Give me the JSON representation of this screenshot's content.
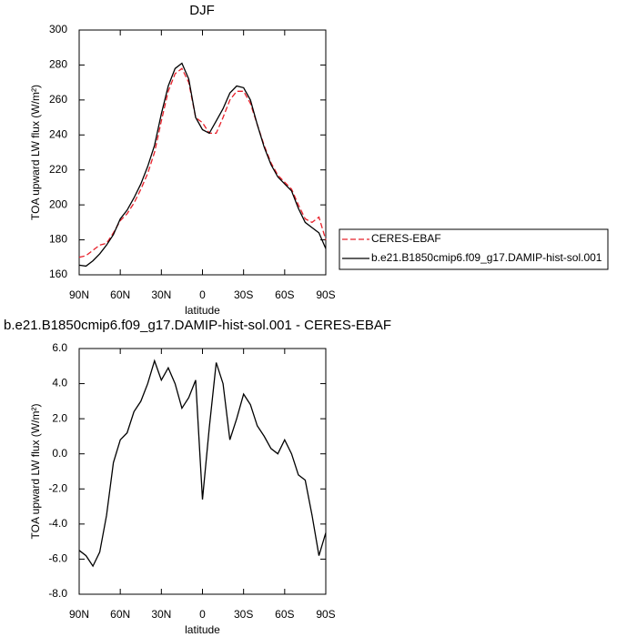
{
  "chart_data": [
    {
      "type": "line",
      "title": "DJF",
      "xlabel": "latitude",
      "ylabel": "TOA upward LW flux (W/m²)",
      "x": [
        90,
        85,
        80,
        75,
        70,
        65,
        60,
        55,
        50,
        45,
        40,
        35,
        30,
        25,
        20,
        15,
        10,
        5,
        0,
        -5,
        -10,
        -15,
        -20,
        -25,
        -30,
        -35,
        -40,
        -45,
        -50,
        -55,
        -60,
        -65,
        -70,
        -75,
        -80,
        -85,
        -90
      ],
      "xlim": [
        90,
        -90
      ],
      "xticks": [
        {
          "value": 90,
          "label": "90N"
        },
        {
          "value": 60,
          "label": "60N"
        },
        {
          "value": 30,
          "label": "30N"
        },
        0,
        {
          "value": -30,
          "label": "30S"
        },
        {
          "value": -60,
          "label": "60S"
        },
        {
          "value": -90,
          "label": "90S"
        }
      ],
      "ylim": [
        160,
        300
      ],
      "yticks": [
        160,
        180,
        200,
        220,
        240,
        260,
        280,
        300
      ],
      "legend": "right",
      "series": [
        {
          "name": "CERES-EBAF",
          "color": "#e8202a",
          "style": "dashed",
          "values": [
            170,
            171,
            174,
            177,
            178,
            184,
            191,
            195,
            201,
            209,
            218,
            230,
            248,
            265,
            275,
            278,
            270,
            250,
            247,
            241,
            241,
            250,
            260,
            265,
            265,
            258,
            246,
            234,
            224,
            217,
            213,
            209,
            200,
            192,
            190,
            193,
            180
          ]
        },
        {
          "name": "b.e21.B1850cmip6.f09_g17.DAMIP-hist-sol.001",
          "color": "#000000",
          "style": "solid",
          "values": [
            165.5,
            165,
            168,
            172,
            177,
            183,
            192,
            197,
            204,
            212,
            222,
            234,
            252,
            268,
            278,
            281,
            272,
            250,
            243,
            241,
            248,
            255,
            264,
            268,
            267,
            260,
            246,
            233,
            223,
            216,
            212,
            208,
            198,
            190,
            187,
            184,
            175
          ]
        }
      ]
    },
    {
      "type": "line",
      "title": "b.e21.B1850cmip6.f09_g17.DAMIP-hist-sol.001 - CERES-EBAF",
      "xlabel": "latitude",
      "ylabel": "TOA upward LW flux (W/m²)",
      "x": [
        90,
        85,
        80,
        75,
        70,
        65,
        60,
        55,
        50,
        45,
        40,
        35,
        30,
        25,
        20,
        15,
        10,
        5,
        0,
        -5,
        -10,
        -15,
        -20,
        -25,
        -30,
        -35,
        -40,
        -45,
        -50,
        -55,
        -60,
        -65,
        -70,
        -75,
        -80,
        -85,
        -90
      ],
      "xlim": [
        90,
        -90
      ],
      "xticks": [
        {
          "value": 90,
          "label": "90N"
        },
        {
          "value": 60,
          "label": "60N"
        },
        {
          "value": 30,
          "label": "30N"
        },
        0,
        {
          "value": -30,
          "label": "30S"
        },
        {
          "value": -60,
          "label": "60S"
        },
        {
          "value": -90,
          "label": "90S"
        }
      ],
      "ylim": [
        -8,
        6
      ],
      "yticks": [
        {
          "value": -8,
          "label": "-8.0"
        },
        {
          "value": -6,
          "label": "-6.0"
        },
        {
          "value": -4,
          "label": "-4.0"
        },
        {
          "value": -2,
          "label": "-2.0"
        },
        {
          "value": 0,
          "label": "0.0"
        },
        {
          "value": 2,
          "label": "2.0"
        },
        {
          "value": 4,
          "label": "4.0"
        },
        {
          "value": 6,
          "label": "6.0"
        }
      ],
      "color": "#000000",
      "values": [
        -5.5,
        -5.8,
        -6.4,
        -5.6,
        -3.5,
        -0.5,
        0.8,
        1.2,
        2.4,
        3.0,
        4.0,
        5.3,
        4.2,
        4.9,
        4.0,
        2.6,
        3.2,
        4.2,
        -2.6,
        1.5,
        5.2,
        4.0,
        0.8,
        2.0,
        3.4,
        2.8,
        1.6,
        1.0,
        0.3,
        0.0,
        0.8,
        0.0,
        -1.2,
        -1.5,
        -3.5,
        -5.8,
        -4.5
      ]
    }
  ]
}
